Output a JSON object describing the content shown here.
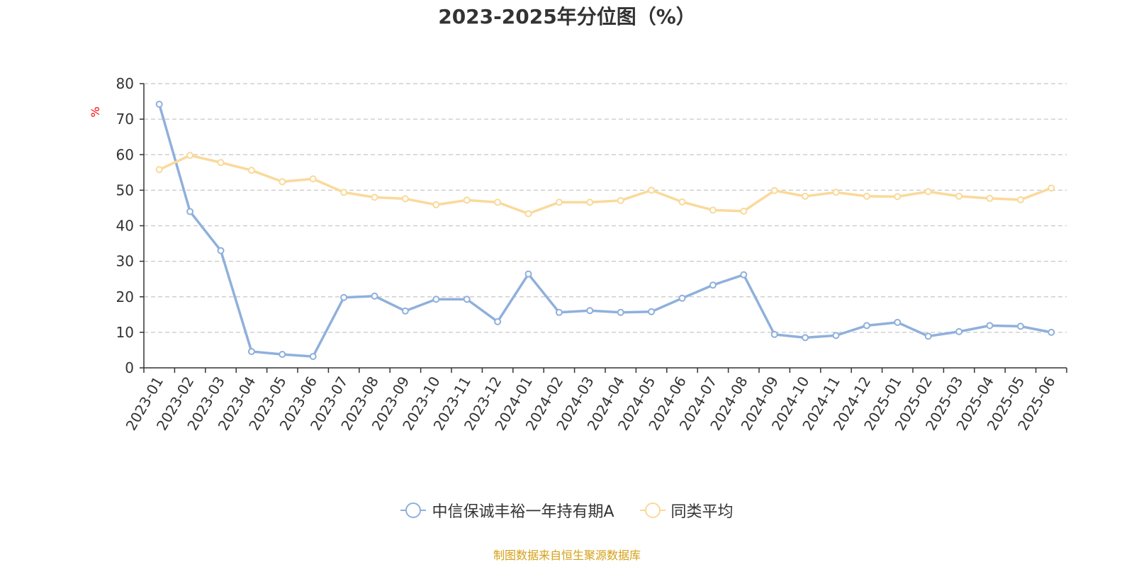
{
  "colors": {
    "series1": "#8fb0dc",
    "series2": "#fad99a",
    "ylabel": "#ff0000",
    "source": "#d4a017",
    "grid": "#c8c8c8",
    "axis": "#333333"
  },
  "footer": {
    "source": "制图数据来自恒生聚源数据库"
  },
  "chart_data": {
    "type": "line",
    "title": "2023-2025年分位图（%）",
    "ylabel": "%",
    "xlabel": "",
    "ylim": [
      0,
      80
    ],
    "yticks": [
      0,
      10,
      20,
      30,
      40,
      50,
      60,
      70,
      80
    ],
    "grid": true,
    "legend_position": "bottom",
    "categories": [
      "2023-01",
      "2023-02",
      "2023-03",
      "2023-04",
      "2023-05",
      "2023-06",
      "2023-07",
      "2023-08",
      "2023-09",
      "2023-10",
      "2023-11",
      "2023-12",
      "2024-01",
      "2024-02",
      "2024-03",
      "2024-04",
      "2024-05",
      "2024-06",
      "2024-07",
      "2024-08",
      "2024-09",
      "2024-10",
      "2024-11",
      "2024-12",
      "2025-01",
      "2025-02",
      "2025-03",
      "2025-04",
      "2025-05",
      "2025-06"
    ],
    "series": [
      {
        "name": "中信保诚丰裕一年持有期A",
        "values": [
          74.2,
          44.0,
          33.0,
          4.6,
          3.8,
          3.2,
          19.8,
          20.2,
          16.0,
          19.3,
          19.3,
          13.0,
          26.4,
          15.6,
          16.1,
          15.6,
          15.8,
          19.6,
          23.3,
          26.2,
          9.4,
          8.5,
          9.1,
          11.9,
          12.8,
          8.9,
          10.2,
          11.9,
          11.7,
          10.0
        ]
      },
      {
        "name": "同类平均",
        "values": [
          55.8,
          59.8,
          57.8,
          55.6,
          52.4,
          53.2,
          49.4,
          48.0,
          47.6,
          45.9,
          47.2,
          46.6,
          43.4,
          46.6,
          46.6,
          47.1,
          50.0,
          46.7,
          44.4,
          44.1,
          49.9,
          48.3,
          49.4,
          48.3,
          48.2,
          49.6,
          48.3,
          47.7,
          47.3,
          50.6
        ]
      }
    ]
  }
}
